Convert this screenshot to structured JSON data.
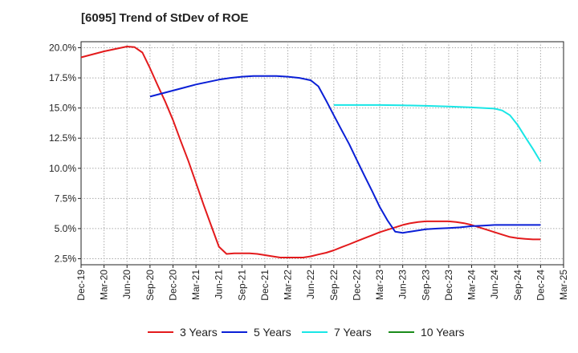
{
  "chart_data": {
    "type": "line",
    "title": "[6095]  Trend of StDev of ROE",
    "xlabel": "",
    "ylabel": "",
    "grid": true,
    "legend_position": "bottom",
    "x_tick_labels": [
      "Dec-19",
      "Mar-20",
      "Jun-20",
      "Sep-20",
      "Dec-20",
      "Mar-21",
      "Jun-21",
      "Sep-21",
      "Dec-21",
      "Mar-22",
      "Jun-22",
      "Sep-22",
      "Dec-22",
      "Mar-23",
      "Jun-23",
      "Sep-23",
      "Dec-23",
      "Mar-24",
      "Jun-24",
      "Sep-24",
      "Dec-24",
      "Mar-25"
    ],
    "y_ticks": [
      2.5,
      5.0,
      7.5,
      10.0,
      12.5,
      15.0,
      17.5,
      20.0
    ],
    "y_tick_labels": [
      "2.5%",
      "5.0%",
      "7.5%",
      "10.0%",
      "12.5%",
      "15.0%",
      "17.5%",
      "20.0%"
    ],
    "ylim": [
      2.0,
      20.5
    ],
    "series": [
      {
        "name": "3 Years",
        "color": "#e31a1c",
        "x": [
          0,
          1,
          2,
          2.33,
          2.67,
          3,
          3.33,
          3.67,
          4,
          4.33,
          4.67,
          5,
          5.33,
          5.67,
          6,
          6.33,
          6.67,
          7,
          7.33,
          7.67,
          8,
          8.33,
          8.67,
          9,
          9.33,
          9.67,
          10,
          10.33,
          10.67,
          11,
          11.33,
          11.67,
          12,
          12.33,
          12.67,
          13,
          13.33,
          13.67,
          14,
          14.33,
          14.67,
          15,
          15.33,
          15.67,
          16,
          16.33,
          16.67,
          17,
          17.33,
          17.67,
          18,
          18.33,
          18.67,
          19,
          19.33,
          19.67,
          20
        ],
        "values": [
          19.2,
          19.7,
          20.1,
          20.05,
          19.6,
          18.3,
          16.9,
          15.5,
          14.0,
          12.3,
          10.6,
          8.8,
          7.0,
          5.2,
          3.5,
          2.9,
          2.95,
          2.95,
          2.95,
          2.9,
          2.8,
          2.7,
          2.6,
          2.6,
          2.6,
          2.6,
          2.7,
          2.85,
          3.0,
          3.2,
          3.45,
          3.7,
          3.95,
          4.2,
          4.45,
          4.7,
          4.9,
          5.1,
          5.3,
          5.45,
          5.55,
          5.6,
          5.6,
          5.6,
          5.6,
          5.55,
          5.45,
          5.3,
          5.1,
          4.9,
          4.7,
          4.5,
          4.3,
          4.2,
          4.15,
          4.1,
          4.1
        ]
      },
      {
        "name": "5 Years",
        "color": "#0a1fd6",
        "x": [
          3,
          3.5,
          4,
          4.5,
          5,
          5.5,
          6,
          6.5,
          7,
          7.5,
          8,
          8.5,
          9,
          9.5,
          10,
          10.33,
          10.67,
          11,
          11.33,
          11.67,
          12,
          12.33,
          12.67,
          13,
          13.33,
          13.67,
          14,
          14.33,
          14.67,
          15,
          15.5,
          16,
          16.5,
          17,
          17.5,
          18,
          18.5,
          19,
          19.5,
          20
        ],
        "values": [
          15.95,
          16.2,
          16.45,
          16.7,
          16.95,
          17.15,
          17.35,
          17.5,
          17.6,
          17.65,
          17.65,
          17.65,
          17.6,
          17.5,
          17.3,
          16.8,
          15.6,
          14.4,
          13.2,
          12.0,
          10.7,
          9.4,
          8.1,
          6.8,
          5.7,
          4.75,
          4.65,
          4.75,
          4.85,
          4.95,
          5.0,
          5.05,
          5.1,
          5.2,
          5.25,
          5.3,
          5.3,
          5.3,
          5.3,
          5.3
        ]
      },
      {
        "name": "7 Years",
        "color": "#19e6e6",
        "x": [
          11,
          12,
          13,
          14,
          15,
          16,
          17,
          17.5,
          18,
          18.33,
          18.67,
          19,
          19.33,
          19.67,
          20
        ],
        "values": [
          15.25,
          15.25,
          15.25,
          15.22,
          15.18,
          15.12,
          15.05,
          15.0,
          14.95,
          14.8,
          14.4,
          13.6,
          12.6,
          11.6,
          10.55
        ]
      },
      {
        "name": "10 Years",
        "color": "#1a8c1a",
        "x": [],
        "values": []
      }
    ]
  }
}
